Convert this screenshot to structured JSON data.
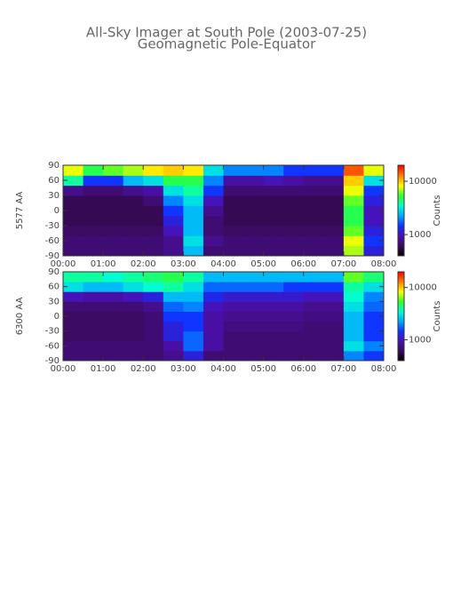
{
  "title": "All-Sky Imager at South Pole (2003-07-25)",
  "subtitle": "Geomagnetic Pole-Equator",
  "colormap": [
    "#000000",
    "#3a0a5a",
    "#4a10b0",
    "#1030ff",
    "#00a8ff",
    "#00ffd0",
    "#30ff30",
    "#ffff00",
    "#ff8000",
    "#ff0000"
  ],
  "chart_data": [
    {
      "type": "heatmap",
      "ylabel": "5577 AA",
      "colorbar_label": "Counts",
      "xlim": [
        0,
        8
      ],
      "xticks": [
        {
          "value": 0,
          "label": "00:00"
        },
        {
          "value": 1,
          "label": "01:00"
        },
        {
          "value": 2,
          "label": "02:00"
        },
        {
          "value": 3,
          "label": "03:00"
        },
        {
          "value": 4,
          "label": "04:00"
        },
        {
          "value": 5,
          "label": "05:00"
        },
        {
          "value": 6,
          "label": "06:00"
        },
        {
          "value": 7,
          "label": "07:00"
        },
        {
          "value": 8,
          "label": "08:00"
        }
      ],
      "ylim": [
        -90,
        90
      ],
      "yticks": [
        -90,
        -60,
        -30,
        0,
        30,
        60,
        90
      ],
      "clim": [
        400,
        20000
      ],
      "cticks": [
        1000,
        10000
      ],
      "log_color": true,
      "x_bins": [
        0,
        0.5,
        1,
        1.5,
        2,
        2.5,
        3,
        3.5,
        4,
        4.5,
        5,
        5.5,
        6,
        6.5,
        7,
        7.5,
        8
      ],
      "y_bins": [
        -90,
        -70,
        -50,
        -30,
        -10,
        10,
        30,
        50,
        70,
        90
      ],
      "values": [
        [
          700,
          700,
          700,
          700,
          700,
          800,
          2500,
          700,
          700,
          700,
          700,
          700,
          700,
          700,
          7000,
          1200
        ],
        [
          700,
          700,
          700,
          700,
          700,
          800,
          3000,
          800,
          700,
          700,
          700,
          700,
          700,
          700,
          8000,
          1500
        ],
        [
          650,
          650,
          650,
          650,
          650,
          1000,
          2500,
          700,
          650,
          650,
          650,
          650,
          650,
          650,
          6000,
          1200
        ],
        [
          600,
          600,
          600,
          600,
          600,
          1200,
          2500,
          700,
          600,
          600,
          600,
          600,
          600,
          600,
          5000,
          1000
        ],
        [
          600,
          600,
          600,
          600,
          600,
          1500,
          2500,
          800,
          600,
          600,
          600,
          600,
          600,
          600,
          5000,
          1000
        ],
        [
          600,
          600,
          600,
          600,
          700,
          2000,
          3000,
          1000,
          600,
          600,
          600,
          600,
          600,
          600,
          6000,
          1200
        ],
        [
          800,
          700,
          700,
          800,
          900,
          3000,
          4000,
          1500,
          700,
          700,
          700,
          700,
          700,
          700,
          8000,
          1500
        ],
        [
          4000,
          1500,
          1500,
          2500,
          3000,
          5000,
          5000,
          2000,
          900,
          900,
          1000,
          900,
          800,
          800,
          10000,
          3000
        ],
        [
          8000,
          5000,
          6000,
          7000,
          9000,
          10000,
          9000,
          3000,
          2000,
          2000,
          2000,
          1500,
          1500,
          1500,
          15000,
          8000
        ]
      ]
    },
    {
      "type": "heatmap",
      "ylabel": "6300 AA",
      "colorbar_label": "Counts",
      "xlim": [
        0,
        8
      ],
      "xticks": [
        {
          "value": 0,
          "label": "00:00"
        },
        {
          "value": 1,
          "label": "01:00"
        },
        {
          "value": 2,
          "label": "02:00"
        },
        {
          "value": 3,
          "label": "03:00"
        },
        {
          "value": 4,
          "label": "04:00"
        },
        {
          "value": 5,
          "label": "05:00"
        },
        {
          "value": 6,
          "label": "06:00"
        },
        {
          "value": 7,
          "label": "07:00"
        },
        {
          "value": 8,
          "label": "08:00"
        }
      ],
      "ylim": [
        -90,
        90
      ],
      "yticks": [
        -90,
        -60,
        -30,
        0,
        30,
        60,
        90
      ],
      "clim": [
        400,
        20000
      ],
      "cticks": [
        1000,
        10000
      ],
      "log_color": true,
      "x_bins": [
        0,
        0.5,
        1,
        1.5,
        2,
        2.5,
        3,
        3.5,
        4,
        4.5,
        5,
        5.5,
        6,
        6.5,
        7,
        7.5,
        8
      ],
      "y_bins": [
        -90,
        -70,
        -50,
        -30,
        -10,
        10,
        30,
        50,
        70,
        90
      ],
      "values": [
        [
          700,
          700,
          700,
          700,
          700,
          800,
          1200,
          700,
          700,
          700,
          700,
          700,
          700,
          700,
          2000,
          1500
        ],
        [
          700,
          700,
          700,
          700,
          700,
          900,
          1800,
          900,
          700,
          700,
          700,
          700,
          700,
          700,
          3000,
          2000
        ],
        [
          650,
          650,
          650,
          650,
          700,
          1200,
          1800,
          900,
          700,
          700,
          700,
          700,
          700,
          700,
          2500,
          1500
        ],
        [
          650,
          650,
          650,
          650,
          700,
          1200,
          1500,
          900,
          750,
          750,
          750,
          750,
          700,
          700,
          2500,
          1500
        ],
        [
          650,
          650,
          650,
          650,
          700,
          1500,
          1500,
          900,
          800,
          800,
          800,
          800,
          750,
          750,
          2500,
          1500
        ],
        [
          700,
          700,
          700,
          700,
          800,
          1800,
          2000,
          1000,
          900,
          900,
          900,
          900,
          800,
          800,
          3000,
          1800
        ],
        [
          1000,
          900,
          900,
          1000,
          1200,
          2500,
          2500,
          1300,
          1100,
          1100,
          1100,
          1100,
          1000,
          1000,
          3500,
          2000
        ],
        [
          3000,
          2500,
          2500,
          3000,
          3500,
          4000,
          3000,
          1800,
          1800,
          1800,
          1800,
          1500,
          1500,
          1500,
          4000,
          3000
        ],
        [
          4000,
          4000,
          3500,
          4000,
          4500,
          5000,
          4000,
          2500,
          2500,
          2500,
          2500,
          2500,
          2500,
          2500,
          6000,
          4500
        ]
      ]
    }
  ]
}
